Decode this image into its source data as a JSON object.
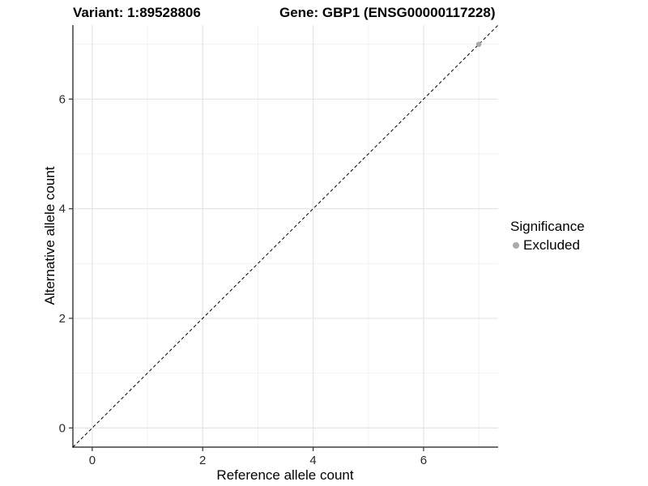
{
  "header": {
    "title_left": "Variant: 1:89528806",
    "title_right": "Gene: GBP1 (ENSG00000117228)"
  },
  "chart_data": {
    "type": "scatter",
    "xlabel": "Reference allele count",
    "ylabel": "Alternative allele count",
    "xlim": [
      -0.35,
      7.35
    ],
    "ylim": [
      -0.35,
      7.35
    ],
    "x_ticks": [
      0,
      2,
      4,
      6
    ],
    "y_ticks": [
      0,
      2,
      4,
      6
    ],
    "x_minor_ticks": [
      1,
      3,
      5,
      7
    ],
    "y_minor_ticks": [
      1,
      3,
      5,
      7
    ],
    "grid": "major+minor",
    "legend": {
      "title": "Significance",
      "position": "right",
      "items": [
        {
          "label": "Excluded",
          "color": "#aaaaaa"
        }
      ]
    },
    "series": [
      {
        "name": "Excluded",
        "color": "#aaaaaa",
        "points": [
          {
            "x": 7,
            "y": 7
          }
        ]
      }
    ],
    "annotations": [
      {
        "type": "identity-line",
        "slope": 1,
        "intercept": 0,
        "style": "dashed",
        "color": "#000000"
      }
    ]
  },
  "colors": {
    "background": "#ffffff",
    "grid_major": "#e6e6e6",
    "grid_minor": "#f2f2f2",
    "axis_line": "#404040",
    "tick_text": "#2b2b2b"
  }
}
